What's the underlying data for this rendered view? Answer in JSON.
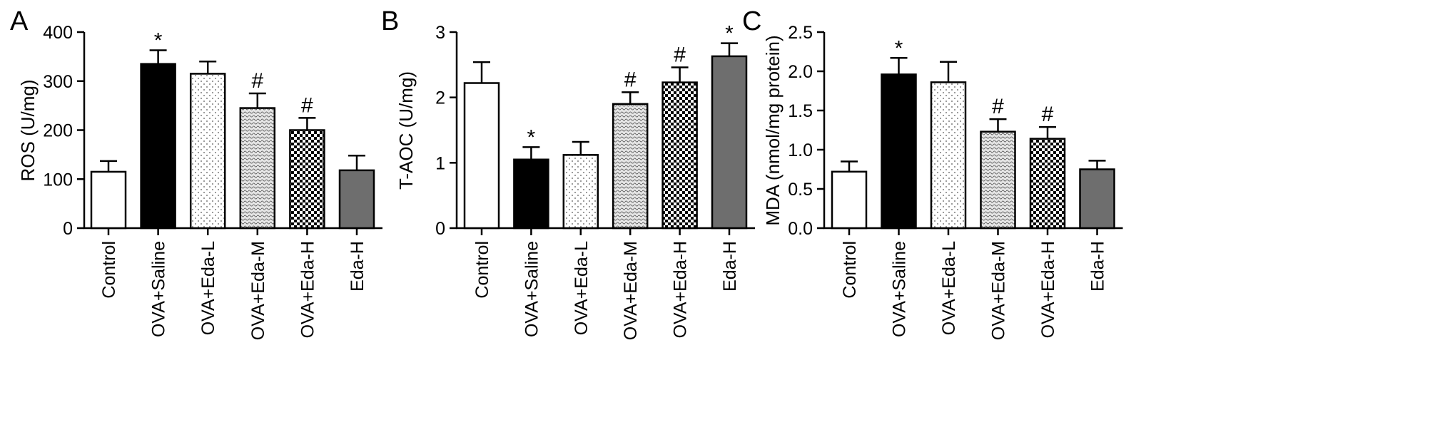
{
  "panels": [
    {
      "letter": "A"
    },
    {
      "letter": "B"
    },
    {
      "letter": "C"
    }
  ],
  "chart_data": [
    {
      "type": "bar",
      "panel_label": "A",
      "ylabel": "ROS (U/mg)",
      "ylim": [
        0,
        400
      ],
      "yticks": [
        "0",
        "100",
        "200",
        "300",
        "400"
      ],
      "categories": [
        "Control",
        "OVA+Saline",
        "OVA+Eda-L",
        "OVA+Eda-M",
        "OVA+Eda-H",
        "Eda-H"
      ],
      "values": [
        115,
        335,
        315,
        245,
        200,
        118
      ],
      "errors": [
        22,
        28,
        25,
        30,
        25,
        30
      ],
      "annotations": [
        "",
        "*",
        "",
        "#",
        "#",
        ""
      ],
      "fills": [
        "white",
        "black",
        "dots-sparse",
        "dots-wave",
        "checker",
        "gray"
      ]
    },
    {
      "type": "bar",
      "panel_label": "B",
      "ylabel": "T-AOC (U/mg)",
      "ylim": [
        0,
        3
      ],
      "yticks": [
        "0",
        "1",
        "2",
        "3"
      ],
      "categories": [
        "Control",
        "OVA+Saline",
        "OVA+Eda-L",
        "OVA+Eda-M",
        "OVA+Eda-H",
        "Eda-H"
      ],
      "values": [
        2.22,
        1.05,
        1.12,
        1.9,
        2.23,
        2.63
      ],
      "errors": [
        0.32,
        0.19,
        0.2,
        0.18,
        0.23,
        0.2
      ],
      "annotations": [
        "",
        "*",
        "",
        "#",
        "#",
        "*"
      ],
      "fills": [
        "white",
        "black",
        "dots-sparse",
        "dots-wave",
        "checker",
        "gray"
      ]
    },
    {
      "type": "bar",
      "panel_label": "C",
      "ylabel": "MDA (nmol/mg protein)",
      "ylim": [
        0,
        2.5
      ],
      "yticks": [
        "0.0",
        "0.5",
        "1.0",
        "1.5",
        "2.0",
        "2.5"
      ],
      "categories": [
        "Control",
        "OVA+Saline",
        "OVA+Eda-L",
        "OVA+Eda-M",
        "OVA+Eda-H",
        "Eda-H"
      ],
      "values": [
        0.72,
        1.96,
        1.86,
        1.23,
        1.14,
        0.75
      ],
      "errors": [
        0.13,
        0.21,
        0.26,
        0.16,
        0.15,
        0.11
      ],
      "annotations": [
        "",
        "*",
        "",
        "#",
        "#",
        ""
      ],
      "fills": [
        "white",
        "black",
        "dots-sparse",
        "dots-wave",
        "checker",
        "gray"
      ]
    }
  ]
}
